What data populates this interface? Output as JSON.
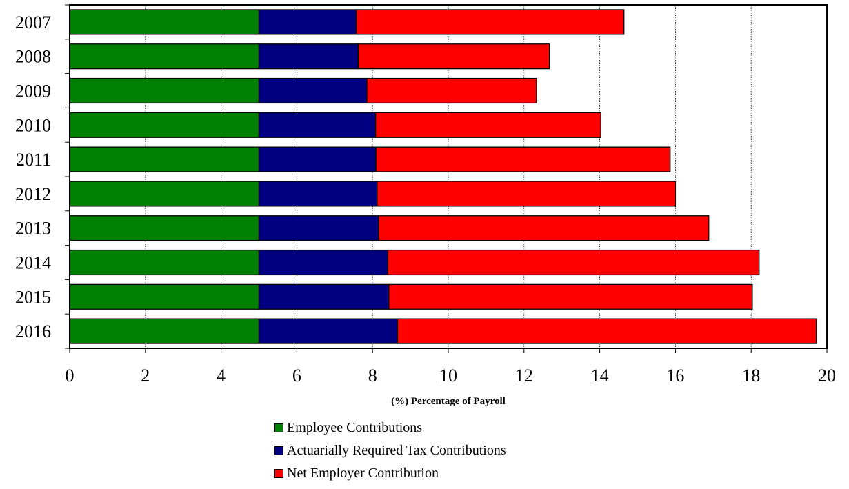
{
  "chart_data": {
    "type": "bar",
    "orientation": "horizontal",
    "stacked": true,
    "title": "",
    "xlabel": "(%) Percentage of Payroll",
    "ylabel": "",
    "xlim": [
      0,
      20
    ],
    "xticks": [
      0,
      2,
      4,
      6,
      8,
      10,
      12,
      14,
      16,
      18,
      20
    ],
    "grid": "vertical",
    "legend_position": "bottom",
    "categories": [
      "2007",
      "2008",
      "2009",
      "2010",
      "2011",
      "2012",
      "2013",
      "2014",
      "2015",
      "2016"
    ],
    "series": [
      {
        "name": "Employee Contributions",
        "color": "#008000",
        "values": [
          5.0,
          5.0,
          5.0,
          5.0,
          5.0,
          5.0,
          5.0,
          5.0,
          5.0,
          5.0
        ]
      },
      {
        "name": "Actuarially Required Tax Contributions",
        "color": "#000080",
        "values": [
          2.57,
          2.62,
          2.85,
          3.08,
          3.09,
          3.12,
          3.16,
          3.4,
          3.43,
          3.66
        ]
      },
      {
        "name": "Net Employer Contribution",
        "color": "#ff0000",
        "values": [
          7.07,
          5.05,
          4.48,
          5.95,
          7.77,
          7.88,
          8.72,
          9.81,
          9.6,
          11.06
        ]
      }
    ]
  }
}
